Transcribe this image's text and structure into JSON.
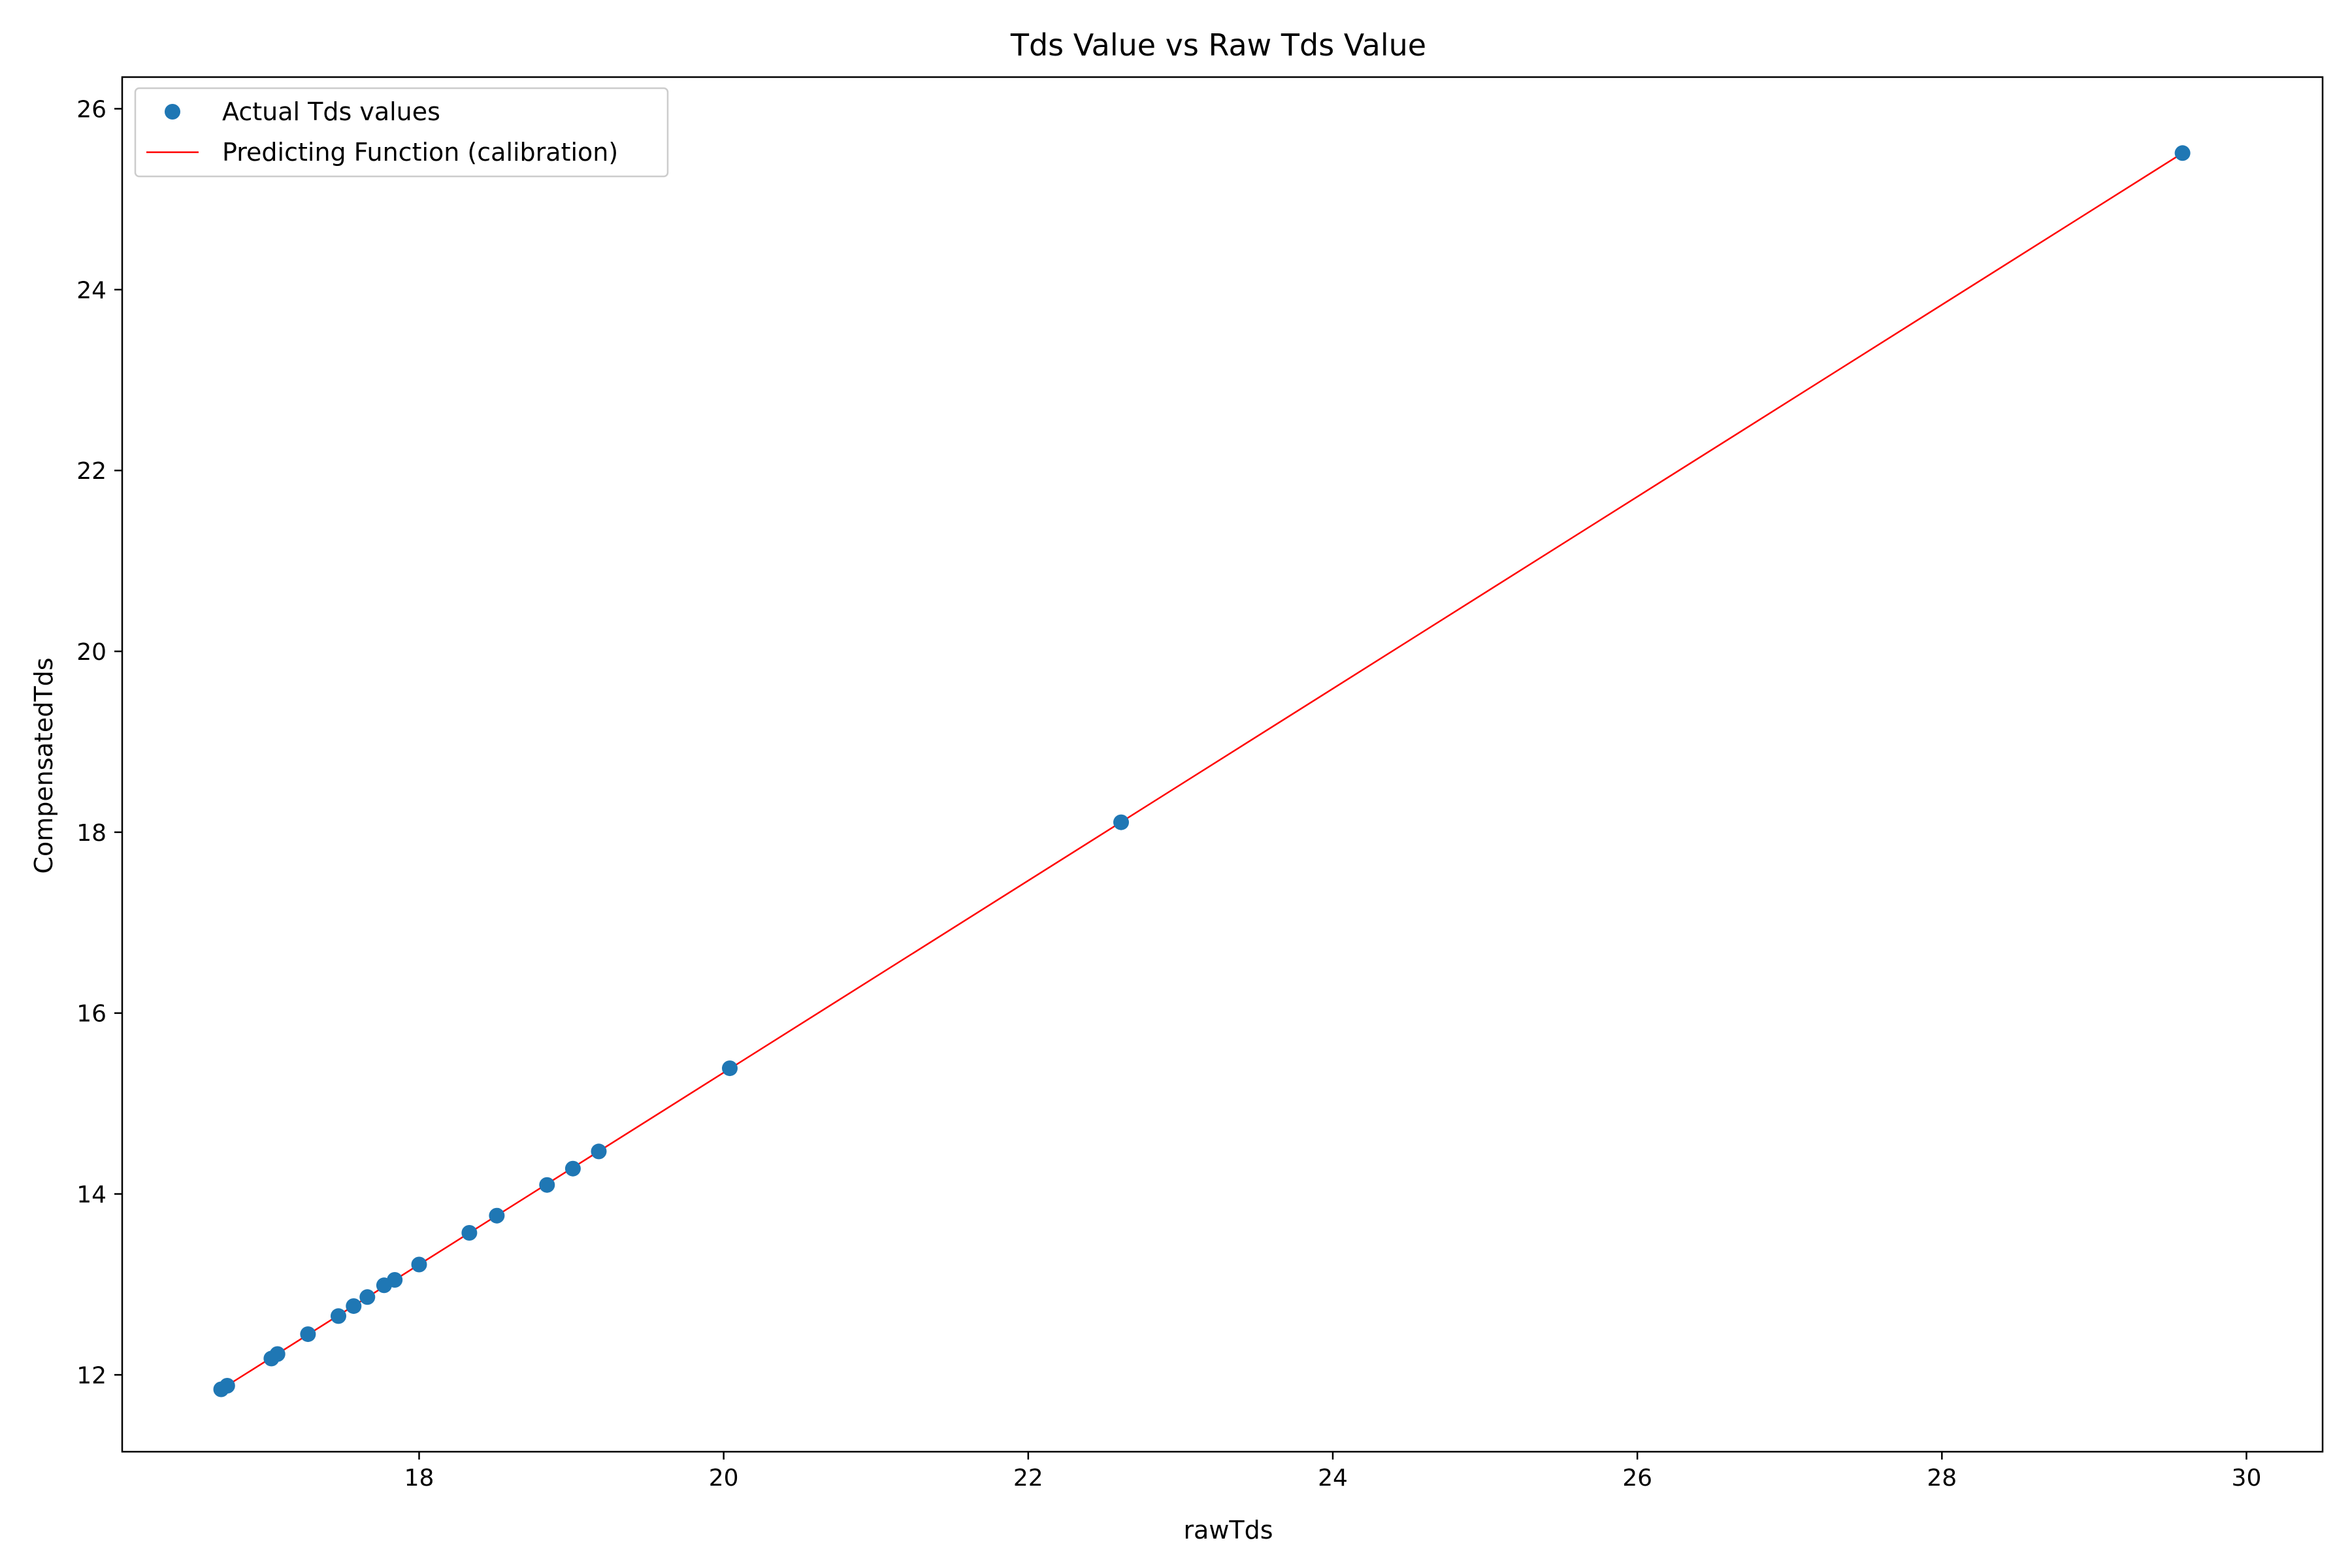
{
  "chart_data": {
    "type": "scatter",
    "title": "Tds Value vs Raw Tds Value",
    "xlabel": "rawTds",
    "ylabel": "CompensatedTds",
    "xlim": [
      16.05,
      30.5
    ],
    "ylim": [
      11.15,
      26.35
    ],
    "xticks": [
      18,
      20,
      22,
      24,
      26,
      28,
      30
    ],
    "yticks": [
      12,
      14,
      16,
      18,
      20,
      22,
      24,
      26
    ],
    "grid": false,
    "legend_position": "top-left",
    "series": [
      {
        "name": "Actual Tds values",
        "kind": "scatter",
        "color": "#1f77b4",
        "points": [
          [
            16.7,
            11.84
          ],
          [
            16.74,
            11.88
          ],
          [
            17.03,
            12.18
          ],
          [
            17.07,
            12.23
          ],
          [
            17.27,
            12.45
          ],
          [
            17.47,
            12.65
          ],
          [
            17.57,
            12.76
          ],
          [
            17.66,
            12.86
          ],
          [
            17.77,
            12.99
          ],
          [
            17.84,
            13.05
          ],
          [
            18.0,
            13.22
          ],
          [
            18.33,
            13.57
          ],
          [
            18.51,
            13.76
          ],
          [
            18.84,
            14.1
          ],
          [
            19.01,
            14.28
          ],
          [
            19.18,
            14.47
          ],
          [
            20.04,
            15.39
          ],
          [
            22.61,
            18.11
          ],
          [
            29.58,
            25.51
          ]
        ]
      },
      {
        "name": "Predicting Function (calibration)",
        "kind": "line",
        "color": "#ff0000",
        "points": [
          [
            16.7,
            11.84
          ],
          [
            29.58,
            25.51
          ]
        ]
      }
    ]
  }
}
